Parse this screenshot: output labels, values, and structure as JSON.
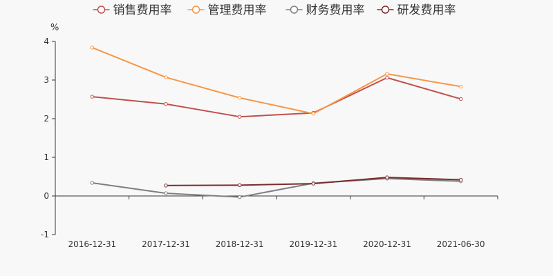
{
  "chart_data": {
    "type": "line",
    "title": "",
    "ylabel": "%",
    "xlabel": "",
    "ylim": [
      -1,
      4
    ],
    "yticks": [
      -1,
      0,
      1,
      2,
      3,
      4
    ],
    "categories": [
      "2016-12-31",
      "2017-12-31",
      "2018-12-31",
      "2019-12-31",
      "2020-12-31",
      "2021-06-30"
    ],
    "legend_position": "top-center",
    "grid": false,
    "series": [
      {
        "name": "销售费用率",
        "color": "#c0504d",
        "values": [
          2.57,
          2.38,
          2.05,
          2.15,
          3.06,
          2.51
        ]
      },
      {
        "name": "管理费用率",
        "color": "#f79646",
        "values": [
          3.84,
          3.07,
          2.54,
          2.13,
          3.16,
          2.83
        ]
      },
      {
        "name": "财务费用率",
        "color": "#7f7f7f",
        "values": [
          0.34,
          0.07,
          -0.03,
          0.33,
          0.45,
          0.38
        ]
      },
      {
        "name": "研发费用率",
        "color": "#7b2c2c",
        "values": [
          null,
          0.27,
          0.28,
          0.32,
          0.48,
          0.42
        ]
      }
    ]
  }
}
